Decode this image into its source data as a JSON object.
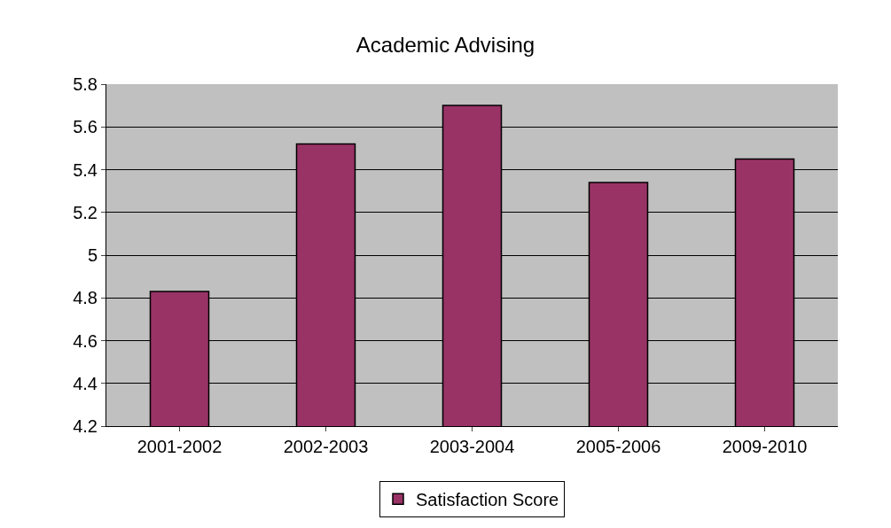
{
  "chart_data": {
    "type": "bar",
    "title": "Academic Advising",
    "categories": [
      "2001-2002",
      "2002-2003",
      "2003-2004",
      "2005-2006",
      "2009-2010"
    ],
    "series": [
      {
        "name": "Satisfaction Score",
        "color": "#993366",
        "values": [
          4.83,
          5.52,
          5.7,
          5.34,
          5.45
        ]
      }
    ],
    "ylim": [
      4.2,
      5.8
    ],
    "yticks": [
      4.2,
      4.4,
      4.6,
      4.8,
      5,
      5.2,
      5.4,
      5.6,
      5.8
    ],
    "grid": "y",
    "legend": "bottom"
  }
}
